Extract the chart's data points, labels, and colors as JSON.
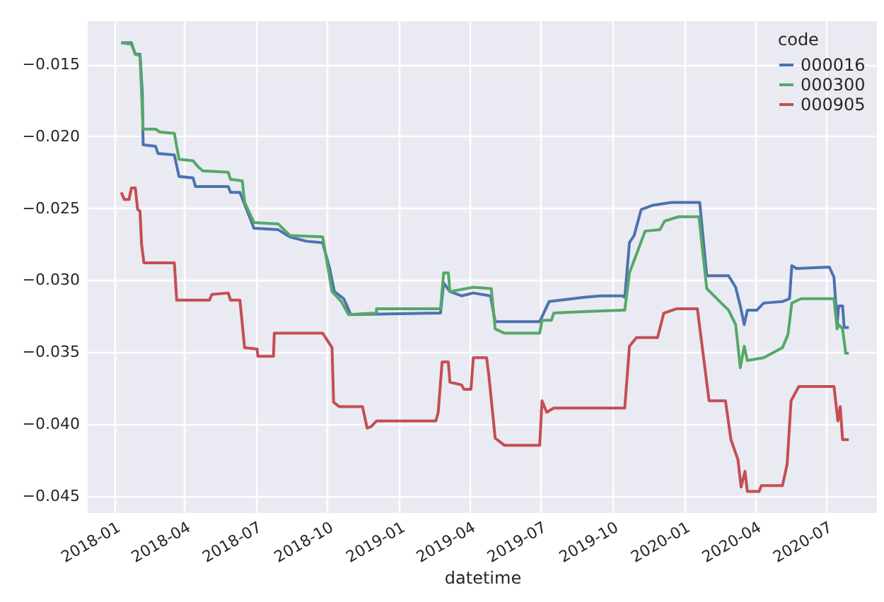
{
  "chart_data": {
    "type": "line",
    "xlabel": "datetime",
    "legend_title": "code",
    "legend": "top right",
    "grid": true,
    "line_style": "solid",
    "marker": "none",
    "xlim": [
      "2017-11-28",
      "2020-09-04"
    ],
    "xticks": [
      "2018-01",
      "2018-04",
      "2018-07",
      "2018-10",
      "2019-01",
      "2019-04",
      "2019-07",
      "2019-10",
      "2020-01",
      "2020-04",
      "2020-07"
    ],
    "ylim": [
      -0.0462,
      -0.012
    ],
    "yticks": [
      {
        "value": -0.045,
        "label": "−0.045"
      },
      {
        "value": -0.04,
        "label": "−0.040"
      },
      {
        "value": -0.035,
        "label": "−0.035"
      },
      {
        "value": -0.03,
        "label": "−0.030"
      },
      {
        "value": -0.025,
        "label": "−0.025"
      },
      {
        "value": -0.02,
        "label": "−0.020"
      },
      {
        "value": -0.015,
        "label": "−0.015"
      }
    ],
    "series": [
      {
        "name": "000016",
        "color": "#4c72b0",
        "x": [
          "2018-01-10",
          "2018-01-23",
          "2018-01-28",
          "2018-02-03",
          "2018-02-06",
          "2018-02-07",
          "2018-02-23",
          "2018-02-26",
          "2018-03-19",
          "2018-03-25",
          "2018-04-12",
          "2018-04-15",
          "2018-05-27",
          "2018-05-30",
          "2018-06-11",
          "2018-06-29",
          "2018-07-30",
          "2018-08-14",
          "2018-09-04",
          "2018-09-25",
          "2018-10-04",
          "2018-10-10",
          "2018-10-22",
          "2018-10-31",
          "2019-02-23",
          "2019-02-27",
          "2019-03-07",
          "2019-03-22",
          "2019-04-06",
          "2019-04-28",
          "2019-05-04",
          "2019-06-30",
          "2019-07-12",
          "2019-08-26",
          "2019-09-16",
          "2019-10-14",
          "2019-10-17",
          "2019-10-23",
          "2019-10-29",
          "2019-11-07",
          "2019-11-22",
          "2019-12-16",
          "2020-01-21",
          "2020-01-30",
          "2020-02-27",
          "2020-03-07",
          "2020-03-13",
          "2020-03-18",
          "2020-03-22",
          "2020-04-03",
          "2020-04-12",
          "2020-05-06",
          "2020-05-15",
          "2020-05-18",
          "2020-05-24",
          "2020-07-05",
          "2020-07-11",
          "2020-07-15",
          "2020-07-17",
          "2020-07-22",
          "2020-07-24",
          "2020-07-30"
        ],
        "values": [
          -0.0135,
          -0.0135,
          -0.0143,
          -0.0143,
          -0.017,
          -0.0206,
          -0.0207,
          -0.0212,
          -0.0213,
          -0.0228,
          -0.0229,
          -0.0235,
          -0.0235,
          -0.0239,
          -0.0239,
          -0.0264,
          -0.0265,
          -0.027,
          -0.0273,
          -0.0274,
          -0.0292,
          -0.0308,
          -0.0313,
          -0.0324,
          -0.0323,
          -0.0302,
          -0.0308,
          -0.0311,
          -0.0309,
          -0.0311,
          -0.0329,
          -0.0329,
          -0.0315,
          -0.0312,
          -0.0311,
          -0.0311,
          -0.0312,
          -0.0274,
          -0.0269,
          -0.0251,
          -0.0248,
          -0.0246,
          -0.0246,
          -0.0297,
          -0.0297,
          -0.0305,
          -0.0318,
          -0.0331,
          -0.0321,
          -0.0321,
          -0.0316,
          -0.0315,
          -0.0313,
          -0.029,
          -0.0292,
          -0.0291,
          -0.0298,
          -0.0331,
          -0.0318,
          -0.0318,
          -0.0333,
          -0.0333
        ]
      },
      {
        "name": "000300",
        "color": "#55a868",
        "x": [
          "2018-01-10",
          "2018-01-23",
          "2018-01-28",
          "2018-02-03",
          "2018-02-07",
          "2018-02-23",
          "2018-02-28",
          "2018-03-19",
          "2018-03-25",
          "2018-04-12",
          "2018-04-18",
          "2018-04-24",
          "2018-05-27",
          "2018-05-30",
          "2018-06-14",
          "2018-06-17",
          "2018-06-29",
          "2018-07-30",
          "2018-08-14",
          "2018-09-25",
          "2018-10-07",
          "2018-10-19",
          "2018-10-28",
          "2018-12-03",
          "2018-12-03",
          "2019-02-23",
          "2019-02-27",
          "2019-03-05",
          "2019-03-07",
          "2019-04-06",
          "2019-04-29",
          "2019-05-04",
          "2019-05-16",
          "2019-06-30",
          "2019-07-03",
          "2019-07-15",
          "2019-07-18",
          "2019-08-26",
          "2019-10-14",
          "2019-10-17",
          "2019-10-23",
          "2019-11-01",
          "2019-11-12",
          "2019-12-01",
          "2019-12-07",
          "2019-12-25",
          "2020-01-20",
          "2020-01-30",
          "2020-02-27",
          "2020-03-07",
          "2020-03-13",
          "2020-03-18",
          "2020-03-22",
          "2020-04-12",
          "2020-05-06",
          "2020-05-13",
          "2020-05-18",
          "2020-05-30",
          "2020-07-11",
          "2020-07-15",
          "2020-07-17",
          "2020-07-22",
          "2020-07-26",
          "2020-07-30"
        ],
        "values": [
          -0.0135,
          -0.0136,
          -0.0143,
          -0.0144,
          -0.0195,
          -0.0195,
          -0.0197,
          -0.0198,
          -0.0216,
          -0.0217,
          -0.0221,
          -0.0224,
          -0.0225,
          -0.023,
          -0.0231,
          -0.0246,
          -0.026,
          -0.0261,
          -0.0269,
          -0.027,
          -0.0308,
          -0.0315,
          -0.0324,
          -0.0323,
          -0.032,
          -0.032,
          -0.0295,
          -0.0295,
          -0.0308,
          -0.0305,
          -0.0306,
          -0.0334,
          -0.0337,
          -0.0337,
          -0.0328,
          -0.0328,
          -0.0323,
          -0.0322,
          -0.0321,
          -0.0321,
          -0.0295,
          -0.0282,
          -0.0266,
          -0.0265,
          -0.0259,
          -0.0256,
          -0.0256,
          -0.0306,
          -0.0321,
          -0.0331,
          -0.0361,
          -0.0346,
          -0.0356,
          -0.0354,
          -0.0347,
          -0.0338,
          -0.0316,
          -0.0313,
          -0.0313,
          -0.0334,
          -0.0331,
          -0.0334,
          -0.0351,
          -0.0351
        ]
      },
      {
        "name": "000905",
        "color": "#c44e52",
        "x": [
          "2018-01-10",
          "2018-01-14",
          "2018-01-20",
          "2018-01-23",
          "2018-01-28",
          "2018-01-31",
          "2018-02-03",
          "2018-02-05",
          "2018-02-08",
          "2018-03-19",
          "2018-03-22",
          "2018-05-03",
          "2018-05-06",
          "2018-05-27",
          "2018-05-30",
          "2018-06-11",
          "2018-06-17",
          "2018-07-03",
          "2018-07-04",
          "2018-07-24",
          "2018-07-25",
          "2018-09-25",
          "2018-10-07",
          "2018-10-09",
          "2018-10-16",
          "2018-11-15",
          "2018-11-21",
          "2018-11-26",
          "2018-12-03",
          "2019-02-17",
          "2019-02-20",
          "2019-02-25",
          "2019-03-05",
          "2019-03-07",
          "2019-03-22",
          "2019-03-25",
          "2019-04-03",
          "2019-04-06",
          "2019-04-23",
          "2019-04-26",
          "2019-05-04",
          "2019-05-16",
          "2019-06-30",
          "2019-07-03",
          "2019-07-09",
          "2019-07-18",
          "2019-10-17",
          "2019-10-23",
          "2019-11-01",
          "2019-11-28",
          "2019-12-06",
          "2019-12-22",
          "2020-01-18",
          "2020-02-02",
          "2020-02-23",
          "2020-03-01",
          "2020-03-10",
          "2020-03-14",
          "2020-03-19",
          "2020-03-22",
          "2020-04-06",
          "2020-04-09",
          "2020-05-06",
          "2020-05-12",
          "2020-05-17",
          "2020-05-27",
          "2020-07-11",
          "2020-07-16",
          "2020-07-19",
          "2020-07-22",
          "2020-07-30"
        ],
        "values": [
          -0.0239,
          -0.0244,
          -0.0244,
          -0.0236,
          -0.0236,
          -0.0251,
          -0.0252,
          -0.0275,
          -0.0288,
          -0.0288,
          -0.0314,
          -0.0314,
          -0.031,
          -0.0309,
          -0.0314,
          -0.0314,
          -0.0347,
          -0.0348,
          -0.0353,
          -0.0353,
          -0.0337,
          -0.0337,
          -0.0347,
          -0.0385,
          -0.0388,
          -0.0388,
          -0.0403,
          -0.0402,
          -0.0398,
          -0.0398,
          -0.0392,
          -0.0357,
          -0.0357,
          -0.0371,
          -0.0373,
          -0.0376,
          -0.0376,
          -0.0354,
          -0.0354,
          -0.0367,
          -0.041,
          -0.0415,
          -0.0415,
          -0.0384,
          -0.0392,
          -0.0389,
          -0.0389,
          -0.0346,
          -0.034,
          -0.034,
          -0.0323,
          -0.032,
          -0.032,
          -0.0384,
          -0.0384,
          -0.0411,
          -0.0425,
          -0.0444,
          -0.0433,
          -0.0447,
          -0.0447,
          -0.0443,
          -0.0443,
          -0.0428,
          -0.0384,
          -0.0374,
          -0.0374,
          -0.0398,
          -0.0388,
          -0.0411,
          -0.0411
        ]
      }
    ]
  }
}
